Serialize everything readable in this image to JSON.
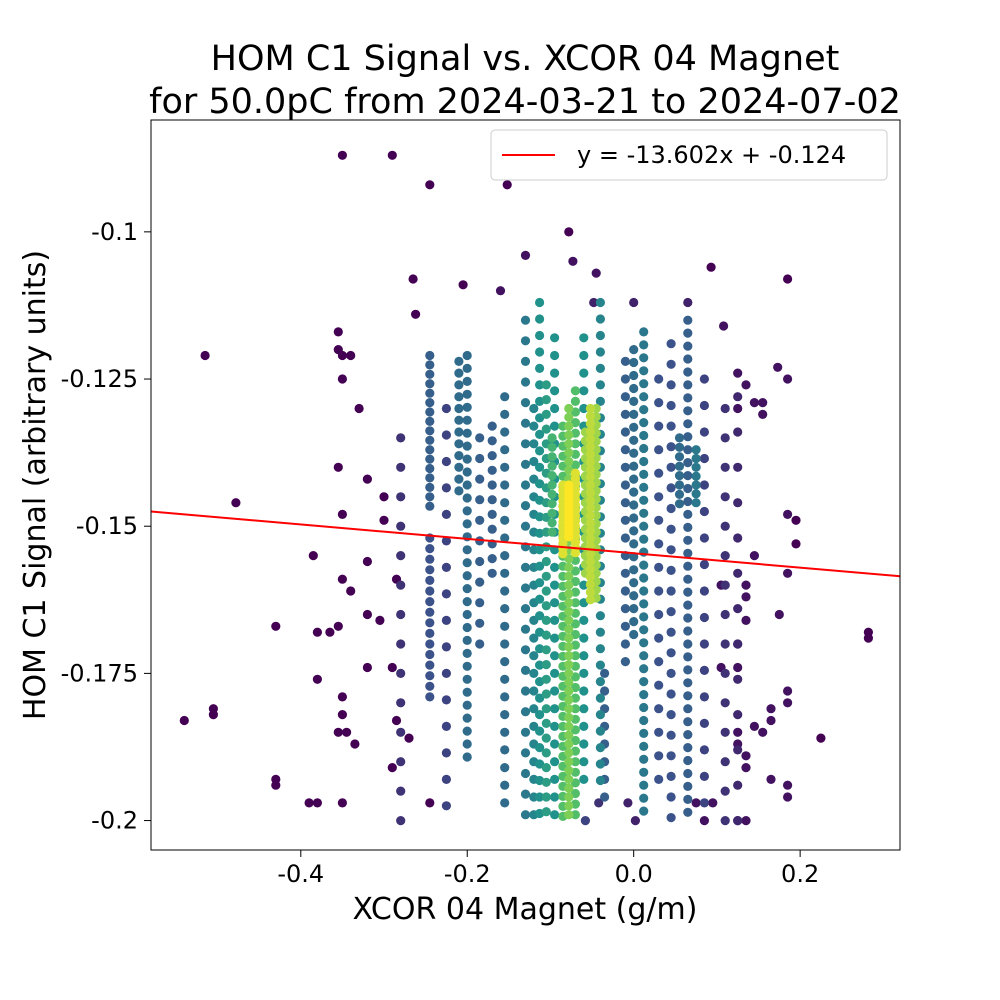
{
  "chart_data": {
    "type": "scatter",
    "title": "HOM C1 Signal vs. XCOR 04 Magnet",
    "subtitle": "for 50.0pC from 2024-03-21 to 2024-07-02",
    "xlabel": "XCOR 04 Magnet (g/m)",
    "ylabel": "HOM C1 Signal (arbitrary units)",
    "xlim": [
      -0.58,
      0.32
    ],
    "ylim": [
      -0.205,
      -0.081
    ],
    "xticks": [
      -0.4,
      -0.2,
      0.0,
      0.2
    ],
    "xtick_labels": [
      "-0.4",
      "-0.2",
      "0.0",
      "0.2"
    ],
    "yticks": [
      -0.1,
      -0.125,
      -0.15,
      -0.175,
      -0.2
    ],
    "ytick_labels": [
      "-0.1",
      "-0.125",
      "-0.15",
      "-0.175",
      "-0.2"
    ],
    "grid": false,
    "legend_position": "upper right",
    "fit_line": {
      "label": "y = -13.602x + -0.124",
      "slope": -13.602,
      "intercept": -0.124,
      "color": "#ff0000"
    },
    "colormap": "viridis (point density)",
    "colors": {
      "low": "#440154",
      "mid": "#21918c",
      "high": "#fde725"
    },
    "points": [
      [
        -0.35,
        -0.087,
        0.0
      ],
      [
        -0.29,
        -0.087,
        0.0
      ],
      [
        -0.245,
        -0.092,
        0.0
      ],
      [
        -0.152,
        -0.092,
        0.0
      ],
      [
        -0.078,
        -0.1,
        0.0
      ],
      [
        -0.13,
        -0.104,
        0.05
      ],
      [
        -0.073,
        -0.105,
        0.05
      ],
      [
        -0.045,
        -0.107,
        0.05
      ],
      [
        0.093,
        -0.106,
        0.0
      ],
      [
        0.185,
        -0.108,
        0.0
      ],
      [
        -0.265,
        -0.108,
        0.0
      ],
      [
        -0.205,
        -0.109,
        0.0
      ],
      [
        -0.16,
        -0.11,
        0.05
      ],
      [
        -0.048,
        -0.112,
        0.1
      ],
      [
        0.0,
        -0.112,
        0.1
      ],
      [
        0.065,
        -0.112,
        0.1
      ],
      [
        -0.262,
        -0.114,
        0.0
      ],
      [
        -0.355,
        -0.117,
        0.0
      ],
      [
        -0.355,
        -0.12,
        0.0
      ],
      [
        -0.515,
        -0.121,
        0.0
      ],
      [
        -0.35,
        -0.121,
        0.0
      ],
      [
        -0.34,
        -0.121,
        0.0
      ],
      [
        -0.35,
        -0.125,
        0.0
      ],
      [
        -0.33,
        -0.13,
        0.0
      ],
      [
        0.108,
        -0.116,
        0.05
      ],
      [
        0.173,
        -0.123,
        0.05
      ],
      [
        0.185,
        -0.125,
        0.05
      ],
      [
        0.155,
        -0.129,
        0.05
      ],
      [
        -0.355,
        -0.14,
        0.0
      ],
      [
        -0.478,
        -0.146,
        0.0
      ],
      [
        -0.32,
        -0.142,
        0.0
      ],
      [
        -0.3,
        -0.145,
        0.0
      ],
      [
        -0.35,
        -0.148,
        0.0
      ],
      [
        -0.3,
        -0.149,
        0.0
      ],
      [
        -0.385,
        -0.155,
        0.0
      ],
      [
        -0.35,
        -0.159,
        0.0
      ],
      [
        -0.34,
        -0.161,
        0.0
      ],
      [
        -0.32,
        -0.156,
        0.0
      ],
      [
        -0.285,
        -0.159,
        0.0
      ],
      [
        -0.32,
        -0.165,
        0.0
      ],
      [
        -0.305,
        -0.166,
        0.0
      ],
      [
        -0.43,
        -0.167,
        0.0
      ],
      [
        -0.38,
        -0.168,
        0.0
      ],
      [
        -0.365,
        -0.168,
        0.0
      ],
      [
        -0.355,
        -0.167,
        0.0
      ],
      [
        -0.32,
        -0.174,
        0.0
      ],
      [
        -0.29,
        -0.174,
        0.0
      ],
      [
        -0.38,
        -0.176,
        0.0
      ],
      [
        -0.35,
        -0.179,
        0.0
      ],
      [
        -0.54,
        -0.183,
        0.0
      ],
      [
        -0.505,
        -0.181,
        0.0
      ],
      [
        -0.505,
        -0.182,
        0.0
      ],
      [
        -0.35,
        -0.182,
        0.0
      ],
      [
        -0.285,
        -0.183,
        0.0
      ],
      [
        -0.355,
        -0.185,
        0.0
      ],
      [
        -0.345,
        -0.185,
        0.0
      ],
      [
        -0.335,
        -0.187,
        0.0
      ],
      [
        -0.27,
        -0.186,
        0.0
      ],
      [
        -0.29,
        -0.191,
        0.0
      ],
      [
        -0.43,
        -0.193,
        0.0
      ],
      [
        -0.43,
        -0.194,
        0.0
      ],
      [
        -0.39,
        -0.197,
        0.0
      ],
      [
        -0.38,
        -0.197,
        0.0
      ],
      [
        -0.35,
        -0.197,
        0.0
      ],
      [
        -0.245,
        -0.197,
        0.0
      ],
      [
        0.282,
        -0.168,
        0.0
      ],
      [
        0.282,
        -0.169,
        0.0
      ],
      [
        0.225,
        -0.186,
        0.0
      ],
      [
        0.195,
        -0.149,
        0.0
      ],
      [
        0.195,
        -0.153,
        0.0
      ],
      [
        0.185,
        -0.148,
        0.05
      ],
      [
        0.185,
        -0.158,
        0.05
      ],
      [
        0.185,
        -0.178,
        0.05
      ],
      [
        0.185,
        -0.18,
        0.05
      ],
      [
        0.185,
        -0.194,
        0.05
      ],
      [
        0.185,
        -0.196,
        0.05
      ],
      [
        0.165,
        -0.181,
        0.05
      ],
      [
        0.165,
        -0.183,
        0.05
      ],
      [
        0.145,
        -0.184,
        0.05
      ],
      [
        0.165,
        -0.193,
        0.05
      ],
      [
        0.125,
        -0.2,
        0.05
      ],
      [
        0.135,
        -0.2,
        0.05
      ],
      [
        0.085,
        -0.2,
        0.05
      ],
      [
        0.075,
        -0.197,
        0.05
      ],
      [
        0.095,
        -0.197,
        0.05
      ],
      [
        0.002,
        -0.2,
        0.1
      ],
      [
        -0.007,
        -0.197,
        0.1
      ],
      [
        -0.042,
        -0.197,
        0.15
      ],
      [
        -0.058,
        -0.2,
        0.2
      ],
      [
        0.135,
        -0.16,
        0.05
      ],
      [
        0.135,
        -0.162,
        0.05
      ],
      [
        0.105,
        -0.16,
        0.05
      ],
      [
        0.125,
        -0.17,
        0.05
      ],
      [
        0.125,
        -0.174,
        0.05
      ],
      [
        0.105,
        -0.174,
        0.05
      ],
      [
        0.125,
        -0.185,
        0.05
      ],
      [
        0.125,
        -0.187,
        0.05
      ],
      [
        0.135,
        -0.189,
        0.05
      ],
      [
        0.135,
        -0.191,
        0.05
      ],
      [
        0.155,
        -0.185,
        0.05
      ],
      [
        0.145,
        -0.155,
        0.05
      ],
      [
        0.135,
        -0.166,
        0.05
      ],
      [
        0.175,
        -0.165,
        0.05
      ],
      [
        0.155,
        -0.131,
        0.05
      ],
      [
        0.145,
        -0.129,
        0.05
      ],
      [
        0.125,
        -0.13,
        0.05
      ],
      [
        0.135,
        -0.126,
        0.05
      ],
      [
        0.125,
        -0.124,
        0.05
      ]
    ],
    "clusters": [
      {
        "x": -0.078,
        "y_from": -0.13,
        "y_to": -0.2,
        "step": 0.0015,
        "level": 0.8
      },
      {
        "x": -0.085,
        "y_from": -0.133,
        "y_to": -0.2,
        "step": 0.0017,
        "level": 0.7
      },
      {
        "x": -0.07,
        "y_from": -0.127,
        "y_to": -0.2,
        "step": 0.0018,
        "level": 0.7
      },
      {
        "x": -0.052,
        "y_from": -0.13,
        "y_to": -0.163,
        "step": 0.0013,
        "level": 0.9
      },
      {
        "x": -0.045,
        "y_from": -0.13,
        "y_to": -0.163,
        "step": 0.0014,
        "level": 0.85
      },
      {
        "x": -0.058,
        "y_from": -0.134,
        "y_to": -0.158,
        "step": 0.0015,
        "level": 0.85
      },
      {
        "x": -0.078,
        "y_from": -0.143,
        "y_to": -0.152,
        "step": 0.0008,
        "level": 1.0
      },
      {
        "x": -0.07,
        "y_from": -0.141,
        "y_to": -0.155,
        "step": 0.0009,
        "level": 0.95
      },
      {
        "x": -0.085,
        "y_from": -0.143,
        "y_to": -0.155,
        "step": 0.0009,
        "level": 0.95
      },
      {
        "x": -0.098,
        "y_from": -0.135,
        "y_to": -0.152,
        "step": 0.0016,
        "level": 0.65
      },
      {
        "x": -0.105,
        "y_from": -0.126,
        "y_to": -0.2,
        "step": 0.0025,
        "level": 0.55
      },
      {
        "x": -0.113,
        "y_from": -0.112,
        "y_to": -0.2,
        "step": 0.0028,
        "level": 0.5
      },
      {
        "x": -0.12,
        "y_from": -0.13,
        "y_to": -0.2,
        "step": 0.003,
        "level": 0.45
      },
      {
        "x": -0.13,
        "y_from": -0.115,
        "y_to": -0.2,
        "step": 0.0035,
        "level": 0.4
      },
      {
        "x": -0.095,
        "y_from": -0.118,
        "y_to": -0.2,
        "step": 0.003,
        "level": 0.5
      },
      {
        "x": -0.06,
        "y_from": -0.118,
        "y_to": -0.195,
        "step": 0.003,
        "level": 0.5
      },
      {
        "x": -0.04,
        "y_from": -0.112,
        "y_to": -0.195,
        "step": 0.0028,
        "level": 0.45
      },
      {
        "x": -0.035,
        "y_from": -0.175,
        "y_to": -0.198,
        "step": 0.003,
        "level": 0.3
      },
      {
        "x": -0.245,
        "y_from": -0.121,
        "y_to": -0.148,
        "step": 0.0016,
        "level": 0.3
      },
      {
        "x": -0.245,
        "y_from": -0.152,
        "y_to": -0.18,
        "step": 0.0018,
        "level": 0.25
      },
      {
        "x": -0.2,
        "y_from": -0.121,
        "y_to": -0.19,
        "step": 0.0022,
        "level": 0.35
      },
      {
        "x": -0.21,
        "y_from": -0.122,
        "y_to": -0.145,
        "step": 0.002,
        "level": 0.35
      },
      {
        "x": -0.155,
        "y_from": -0.128,
        "y_to": -0.198,
        "step": 0.003,
        "level": 0.35
      },
      {
        "x": -0.17,
        "y_from": -0.133,
        "y_to": -0.16,
        "step": 0.0025,
        "level": 0.3
      },
      {
        "x": -0.185,
        "y_from": -0.135,
        "y_to": -0.17,
        "step": 0.0035,
        "level": 0.3
      },
      {
        "x": 0.012,
        "y_from": -0.117,
        "y_to": -0.2,
        "step": 0.0022,
        "level": 0.4
      },
      {
        "x": 0.0,
        "y_from": -0.12,
        "y_to": -0.17,
        "step": 0.0022,
        "level": 0.35
      },
      {
        "x": -0.01,
        "y_from": -0.122,
        "y_to": -0.175,
        "step": 0.003,
        "level": 0.3
      },
      {
        "x": 0.065,
        "y_from": -0.115,
        "y_to": -0.2,
        "step": 0.0022,
        "level": 0.3
      },
      {
        "x": 0.075,
        "y_from": -0.137,
        "y_to": -0.147,
        "step": 0.0015,
        "level": 0.4
      },
      {
        "x": 0.055,
        "y_from": -0.135,
        "y_to": -0.147,
        "step": 0.0016,
        "level": 0.35
      },
      {
        "x": 0.045,
        "y_from": -0.119,
        "y_to": -0.2,
        "step": 0.0035,
        "level": 0.25
      },
      {
        "x": 0.03,
        "y_from": -0.125,
        "y_to": -0.195,
        "step": 0.004,
        "level": 0.25
      },
      {
        "x": -0.28,
        "y_from": -0.135,
        "y_to": -0.2,
        "step": 0.005,
        "level": 0.15
      },
      {
        "x": -0.225,
        "y_from": -0.13,
        "y_to": -0.2,
        "step": 0.0045,
        "level": 0.2
      },
      {
        "x": 0.085,
        "y_from": -0.125,
        "y_to": -0.2,
        "step": 0.0045,
        "level": 0.2
      },
      {
        "x": 0.11,
        "y_from": -0.13,
        "y_to": -0.2,
        "step": 0.005,
        "level": 0.15
      },
      {
        "x": 0.125,
        "y_from": -0.128,
        "y_to": -0.2,
        "step": 0.006,
        "level": 0.12
      }
    ]
  }
}
